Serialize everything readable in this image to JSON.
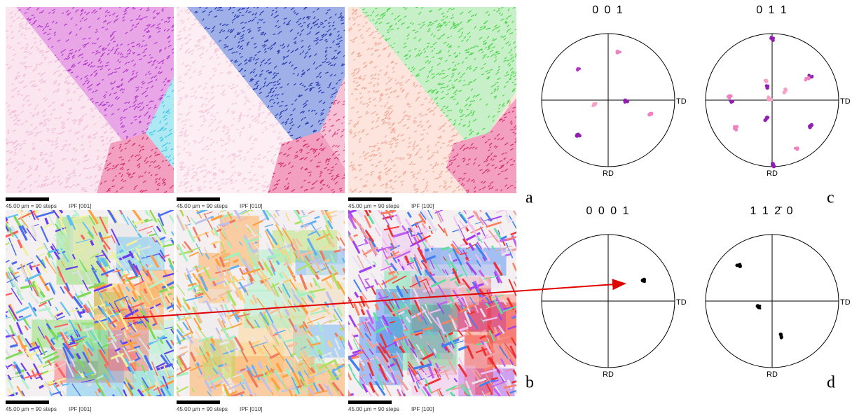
{
  "maps": [
    {
      "scale": "45.00 µm = 90 steps",
      "label": "IPF [001]"
    },
    {
      "scale": "45.00 µm = 90 steps",
      "label": "IPF [010]"
    },
    {
      "scale": "45.00 µm = 90 steps",
      "label": "IPF [100]"
    },
    {
      "scale": "45.00 µm = 90 steps",
      "label": "IPF [001]"
    },
    {
      "scale": "45.00 µm = 90 steps",
      "label": "IPF [010]"
    },
    {
      "scale": "45.00 µm = 90 steps",
      "label": "IPF [100]"
    }
  ],
  "panel_letters": [
    "a",
    "b",
    "c",
    "d"
  ],
  "pole_figures": [
    {
      "title": "0 0 1",
      "x_axis": "TD",
      "y_axis": "RD"
    },
    {
      "title": "0 1 1",
      "x_axis": "TD",
      "y_axis": "RD"
    },
    {
      "title": "0 0 0 1",
      "x_axis": "TD",
      "y_axis": "RD"
    },
    {
      "title": "1 1 2̄ 0",
      "x_axis": "TD",
      "y_axis": "RD"
    }
  ]
}
